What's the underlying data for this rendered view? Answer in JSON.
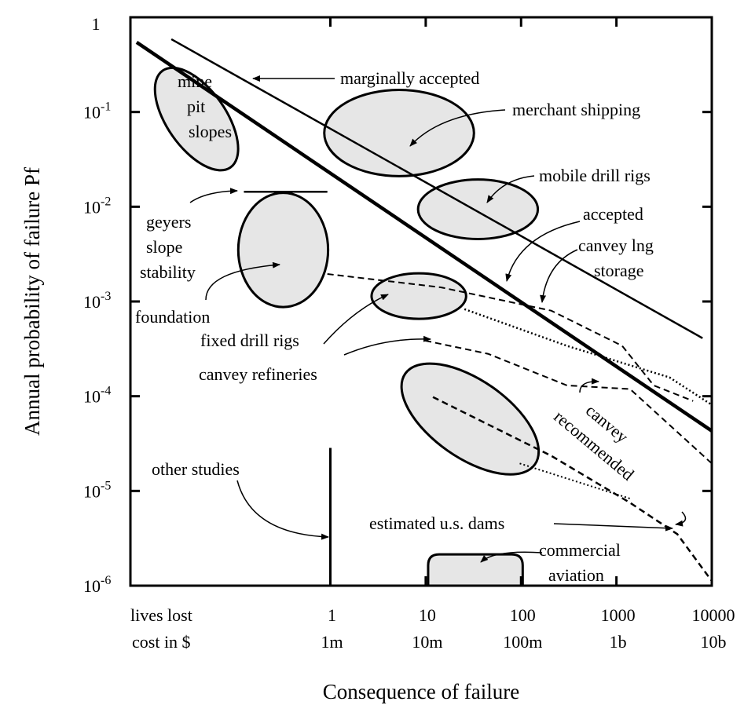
{
  "chart_data": {
    "type": "fn-diagram",
    "y_label": "Annual probability of failure Pf",
    "x_label": "Consequence of failure",
    "log_x": true,
    "log_y": true,
    "xlim": [
      0.008,
      10000
    ],
    "ylim": [
      1e-06,
      1
    ],
    "xticks": [
      1,
      10,
      100,
      1000,
      10000
    ],
    "x_row_labels": [
      "lives lost",
      "cost in $"
    ],
    "x_cost_labels": [
      "1m",
      "10m",
      "100m",
      "1b",
      "10b"
    ],
    "yticks": [
      {
        "value": 1e-06,
        "label": "10",
        "exponent": "-6"
      },
      {
        "value": 1e-05,
        "label": "10",
        "exponent": "-5"
      },
      {
        "value": 0.0001,
        "label": "10",
        "exponent": "-4"
      },
      {
        "value": 0.001,
        "label": "10",
        "exponent": "-3"
      },
      {
        "value": 0.01,
        "label": "10",
        "exponent": "-2"
      },
      {
        "value": 0.1,
        "label": "10",
        "exponent": "-1"
      },
      1
    ],
    "lines": [
      {
        "style": "solid",
        "width": 2.5,
        "x": [
          0.0215,
          8000
        ],
        "y": [
          0.587,
          0.00041
        ]
      },
      {
        "style": "solid",
        "width": 4.5,
        "x": [
          0.0093,
          10000
        ],
        "y": [
          0.544,
          4.3e-05
        ]
      },
      {
        "style": "solid",
        "width": 2.5,
        "x": [
          0.124,
          0.93
        ],
        "y": [
          0.0144,
          0.0144
        ]
      },
      {
        "style": "solid",
        "width": 3,
        "x": [
          1,
          1
        ],
        "y": [
          2.85e-05,
          1e-06
        ]
      },
      {
        "style": "dashed",
        "width": 2,
        "x": [
          0.93,
          14.4,
          207,
          1150,
          2460,
          6370
        ],
        "y": [
          0.00195,
          0.00141,
          0.0008,
          0.00034,
          0.00013,
          8.9e-05
        ]
      },
      {
        "style": "dotted",
        "width": 2.5,
        "x": [
          25.5,
          303,
          3600,
          10000
        ],
        "y": [
          0.00083,
          0.00034,
          0.000158,
          8.1e-05
        ]
      },
      {
        "style": "dashed",
        "width": 2,
        "x": [
          9.86,
          45.2,
          303,
          1390,
          10000
        ],
        "y": [
          0.000386,
          0.00028,
          0.00013,
          0.000119,
          1.95e-05
        ]
      },
      {
        "style": "dashed",
        "width": 2.5,
        "x": [
          11.9,
          207,
          1390,
          4350,
          10000
        ],
        "y": [
          9.8e-05,
          2.35e-05,
          7.5e-06,
          3.5e-06,
          1.12e-06
        ]
      },
      {
        "style": "dotted",
        "width": 2,
        "x": [
          96.8,
          1390
        ],
        "y": [
          1.95e-05,
          8.3e-06
        ]
      }
    ],
    "regions": [
      {
        "shape": "ellipse",
        "x": 0.0395,
        "y": 0.0843,
        "semi_axes": [
          0.62,
          0.31
        ],
        "angle": 55
      },
      {
        "shape": "ellipse",
        "x": 5.26,
        "y": 0.06,
        "semi_axes": [
          0.785,
          0.455
        ],
        "angle": 0
      },
      {
        "shape": "ellipse",
        "x": 35.3,
        "y": 0.0094,
        "semi_axes": [
          0.628,
          0.314
        ],
        "angle": 0
      },
      {
        "shape": "ellipse",
        "x": 0.32,
        "y": 0.0035,
        "semi_axes": [
          0.471,
          0.603
        ],
        "angle": 0
      },
      {
        "shape": "ellipse",
        "x": 8.47,
        "y": 0.00114,
        "semi_axes": [
          0.496,
          0.24
        ],
        "angle": 0
      },
      {
        "shape": "ellipse",
        "x": 29.2,
        "y": 5.75e-05,
        "semi_axes": [
          0.83,
          0.41
        ],
        "angle": 35
      },
      {
        "shape": "box",
        "x": [
          10.6,
          104
        ],
        "y": [
          1e-06,
          2.14e-06
        ]
      }
    ],
    "annotations": [
      [
        "marginally accepted"
      ],
      [
        "merchant shipping"
      ],
      [
        "mobile drill rigs"
      ],
      [
        "accepted"
      ],
      [
        "canvey lng",
        "storage"
      ],
      [
        "mine",
        "pit",
        "slopes"
      ],
      [
        "geyers",
        "slope",
        "stability"
      ],
      [
        "foundation"
      ],
      [
        "fixed drill rigs"
      ],
      [
        "canvey refineries"
      ],
      [
        "canvey",
        "recommended"
      ],
      [
        "other studies"
      ],
      [
        "estimated u.s. dams"
      ],
      [
        "commercial",
        "aviation"
      ]
    ],
    "region_color": "#e6e6e6",
    "line_color": "#000000"
  }
}
